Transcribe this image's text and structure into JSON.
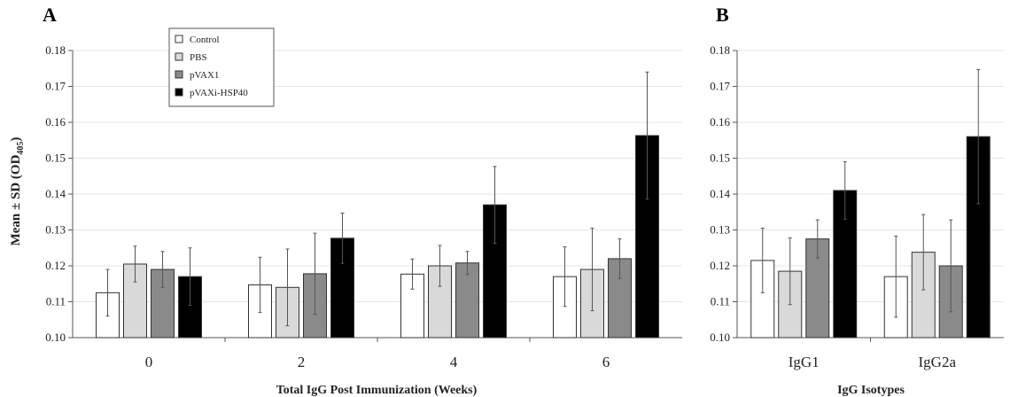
{
  "figure": {
    "ylabel_main": "Mean ± SD (OD",
    "ylabel_sub": "405",
    "ylabel_close": ")"
  },
  "colors": {
    "Control": "#ffffff",
    "PBS": "#d9d9d9",
    "pVAX1": "#8a8a8a",
    "pVAXi-HSP40": "#000000"
  },
  "chart_data": [
    {
      "type": "bar",
      "panel_label": "A",
      "xlabel": "Total IgG Post Immunization (Weeks)",
      "ylim": [
        0.1,
        0.18
      ],
      "yticks": [
        "0.10",
        "0.11",
        "0.12",
        "0.13",
        "0.14",
        "0.15",
        "0.16",
        "0.17",
        "0.18"
      ],
      "grid": true,
      "legend": "top-left",
      "categories": [
        "0",
        "2",
        "4",
        "6"
      ],
      "series": [
        {
          "name": "Control",
          "values": [
            0.1125,
            0.1147,
            0.1177,
            0.117
          ],
          "errors": [
            0.0065,
            0.0077,
            0.0042,
            0.0083
          ]
        },
        {
          "name": "PBS",
          "values": [
            0.1205,
            0.114,
            0.12,
            0.119
          ],
          "errors": [
            0.005,
            0.0107,
            0.0057,
            0.0115
          ]
        },
        {
          "name": "pVAX1",
          "values": [
            0.119,
            0.1178,
            0.1208,
            0.122
          ],
          "errors": [
            0.005,
            0.0113,
            0.0032,
            0.0055
          ]
        },
        {
          "name": "pVAXi-HSP40",
          "values": [
            0.117,
            0.1277,
            0.137,
            0.1563
          ],
          "errors": [
            0.008,
            0.007,
            0.0107,
            0.0177
          ]
        }
      ]
    },
    {
      "type": "bar",
      "panel_label": "B",
      "xlabel": "IgG Isotypes",
      "ylim": [
        0.1,
        0.18
      ],
      "yticks": [
        "0.10",
        "0.11",
        "0.12",
        "0.13",
        "0.14",
        "0.15",
        "0.16",
        "0.17",
        "0.18"
      ],
      "grid": true,
      "categories": [
        "IgG1",
        "IgG2a"
      ],
      "series": [
        {
          "name": "Control",
          "values": [
            0.1215,
            0.117
          ],
          "errors": [
            0.009,
            0.0113
          ]
        },
        {
          "name": "PBS",
          "values": [
            0.1185,
            0.1238
          ],
          "errors": [
            0.0093,
            0.0105
          ]
        },
        {
          "name": "pVAX1",
          "values": [
            0.1275,
            0.12
          ],
          "errors": [
            0.0053,
            0.0128
          ]
        },
        {
          "name": "pVAXi-HSP40",
          "values": [
            0.141,
            0.156
          ],
          "errors": [
            0.008,
            0.0187
          ]
        }
      ]
    }
  ]
}
